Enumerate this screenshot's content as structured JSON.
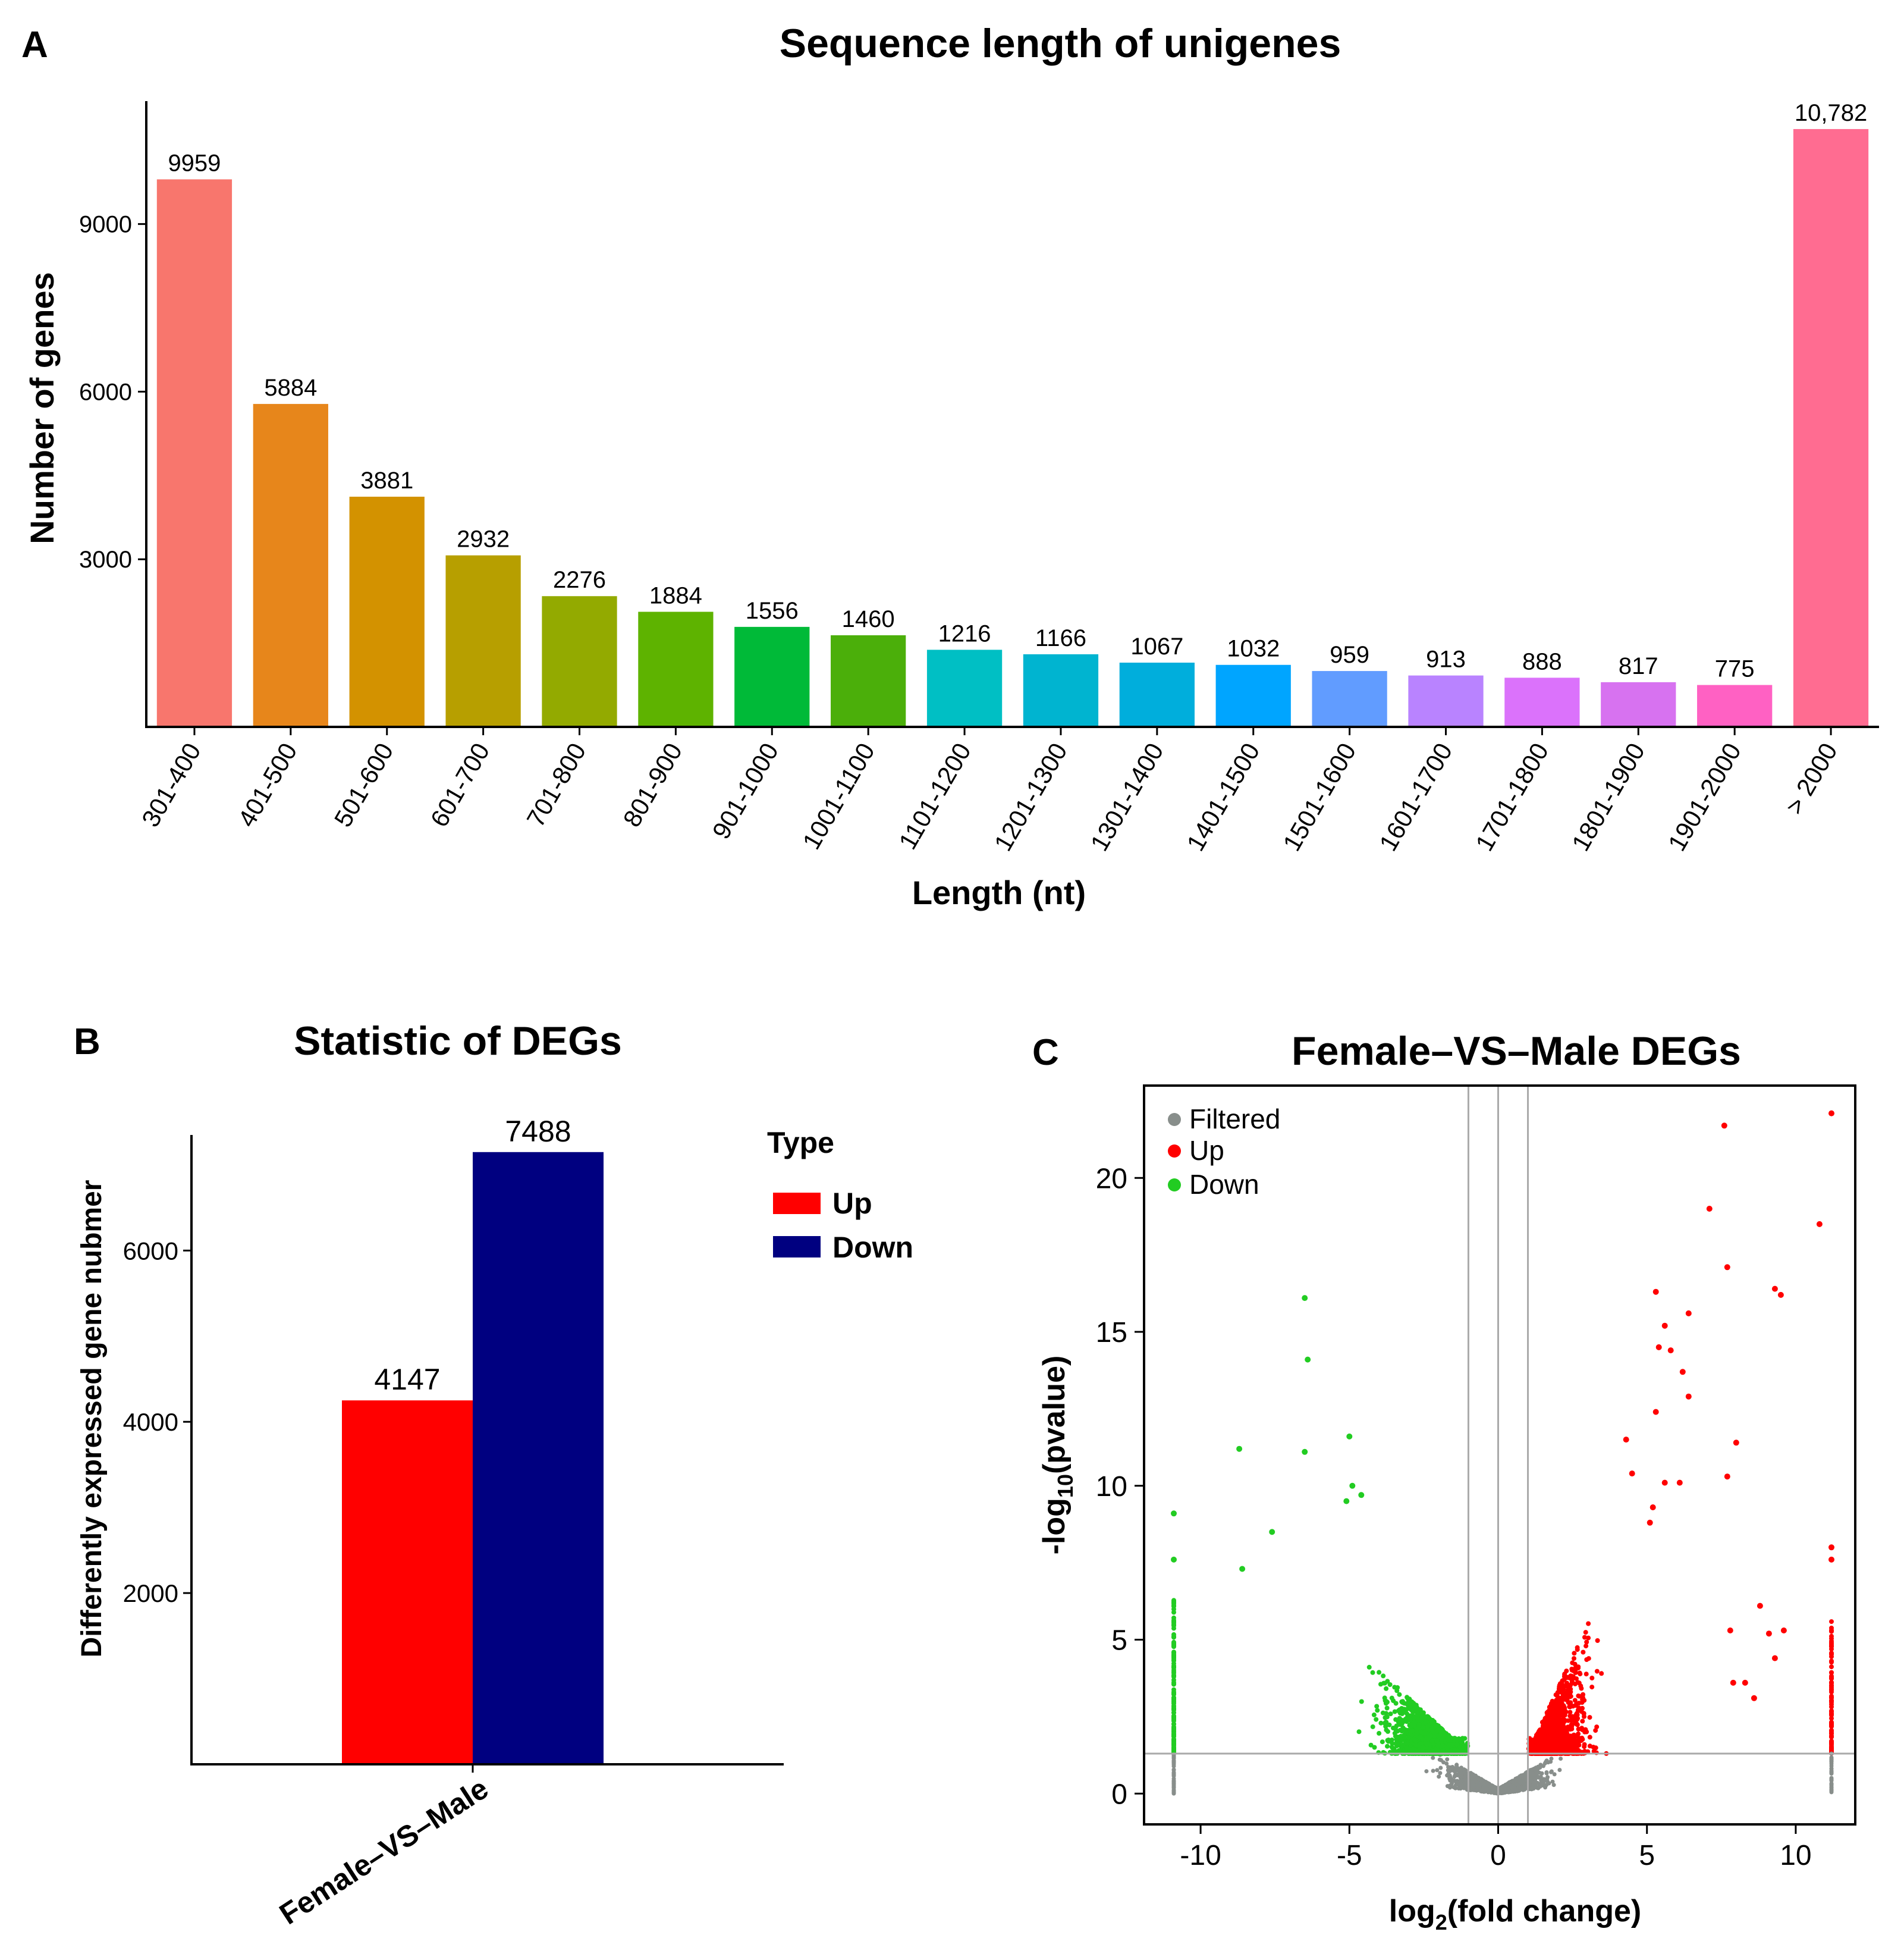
{
  "panels": {
    "a": {
      "letter": "A",
      "chart_data": {
        "type": "bar",
        "title": "Sequence length of unigenes",
        "xlabel": "Length (nt)",
        "ylabel": "Number of genes",
        "categories": [
          "301-400",
          "401-500",
          "501-600",
          "601-700",
          "701-800",
          "801-900",
          "901-1000",
          "1001-1100",
          "1101-1200",
          "1201-1300",
          "1301-1400",
          "1401-1500",
          "1501-1600",
          "1601-1700",
          "1701-1800",
          "1801-1900",
          "1901-2000",
          "> 2000"
        ],
        "values": [
          9959,
          5884,
          3881,
          2932,
          2276,
          1884,
          1556,
          1460,
          1216,
          1166,
          1067,
          1032,
          959,
          913,
          888,
          817,
          775,
          10782
        ],
        "value_labels": [
          "9959",
          "5884",
          "3881",
          "2932",
          "2276",
          "1884",
          "1556",
          "1460",
          "1216",
          "1166",
          "1067",
          "1032",
          "959",
          "913",
          "888",
          "817",
          "775",
          "10,782"
        ],
        "bar_heights_read": [
          9800,
          5780,
          4120,
          3070,
          2340,
          2060,
          1790,
          1640,
          1380,
          1300,
          1150,
          1110,
          1000,
          920,
          880,
          800,
          750,
          10700
        ],
        "colors": [
          "#F8766D",
          "#E7861B",
          "#D39200",
          "#B79F00",
          "#93AA00",
          "#5EB300",
          "#00BA38",
          "#4BAF0A",
          "#00BFC4",
          "#00B4D0",
          "#00AEDC",
          "#00A5FF",
          "#619CFF",
          "#B983FF",
          "#DB72FB",
          "#D772F0",
          "#FF61C3",
          "#FF6C91"
        ],
        "yticks": [
          3000,
          6000,
          9000
        ],
        "yticklabels": [
          "3000",
          "6000",
          "9000"
        ],
        "ylim": [
          0,
          11200
        ]
      }
    },
    "b": {
      "letter": "B",
      "chart_data": {
        "type": "bar",
        "title": "Statistic of DEGs",
        "ylabel": "Differently expressed gene nubmer",
        "categories": [
          "Female–VS–Male"
        ],
        "series": [
          {
            "name": "Up",
            "values": [
              4147
            ],
            "bar_height_read": [
              4250
            ],
            "color": "#FF0000"
          },
          {
            "name": "Down",
            "values": [
              7488
            ],
            "bar_height_read": [
              7150
            ],
            "color": "#000080"
          }
        ],
        "value_labels": [
          "4147",
          "7488"
        ],
        "legend_title": "Type",
        "legend_position": "right",
        "yticks": [
          2000,
          4000,
          6000
        ],
        "yticklabels": [
          "2000",
          "4000",
          "6000"
        ],
        "ylim": [
          0,
          7350
        ]
      }
    },
    "c": {
      "letter": "C",
      "chart_data": {
        "type": "scatter",
        "title": "Female–VS–Male DEGs",
        "xlabel_base": "log",
        "xlabel_sub": "2",
        "xlabel_rest": "(fold change)",
        "ylabel_base": "-log",
        "ylabel_sub": "10",
        "ylabel_rest": "(pvalue)",
        "xticks": [
          -10,
          -5,
          0,
          5,
          10
        ],
        "xticklabels": [
          "-10",
          "-5",
          "0",
          "5",
          "10"
        ],
        "yticks": [
          0,
          5,
          10,
          15,
          20
        ],
        "yticklabels": [
          "0",
          "5",
          "10",
          "15",
          "20"
        ],
        "xlim": [
          -11.9,
          12.0
        ],
        "ylim": [
          -1.0,
          23.0
        ],
        "vlines": [
          -1,
          0,
          1
        ],
        "hline": 1.3,
        "legend": [
          {
            "name": "Filtered",
            "color": "#888E8B"
          },
          {
            "name": "Up",
            "color": "#FF0000"
          },
          {
            "name": "Down",
            "color": "#22CC22"
          }
        ],
        "legend_position": "top-left",
        "up_outliers": [
          [
            7.6,
            21.7
          ],
          [
            11.2,
            22.1
          ],
          [
            7.1,
            19.0
          ],
          [
            10.8,
            18.5
          ],
          [
            7.7,
            17.1
          ],
          [
            9.3,
            16.4
          ],
          [
            9.5,
            16.2
          ],
          [
            6.4,
            15.6
          ],
          [
            5.3,
            16.3
          ],
          [
            5.6,
            15.2
          ],
          [
            5.8,
            14.4
          ],
          [
            5.4,
            14.5
          ],
          [
            6.2,
            13.7
          ],
          [
            6.4,
            12.9
          ],
          [
            8.0,
            11.4
          ],
          [
            5.3,
            12.4
          ],
          [
            4.3,
            11.5
          ],
          [
            7.7,
            10.3
          ],
          [
            4.5,
            10.4
          ],
          [
            5.6,
            10.1
          ],
          [
            6.1,
            10.1
          ],
          [
            5.2,
            9.3
          ],
          [
            5.1,
            8.8
          ],
          [
            8.8,
            6.1
          ],
          [
            9.6,
            5.3
          ],
          [
            9.1,
            5.2
          ],
          [
            7.8,
            5.3
          ],
          [
            9.3,
            4.4
          ],
          [
            7.9,
            3.6
          ],
          [
            8.3,
            3.6
          ],
          [
            8.6,
            3.1
          ],
          [
            11.2,
            8.0
          ],
          [
            11.2,
            7.6
          ]
        ],
        "down_outliers": [
          [
            -6.5,
            16.1
          ],
          [
            -6.4,
            14.1
          ],
          [
            -5.0,
            11.6
          ],
          [
            -6.5,
            11.1
          ],
          [
            -8.7,
            11.2
          ],
          [
            -4.9,
            10.0
          ],
          [
            -4.6,
            9.7
          ],
          [
            -5.1,
            9.5
          ],
          [
            -7.6,
            8.5
          ],
          [
            -10.9,
            9.1
          ],
          [
            -10.9,
            7.6
          ],
          [
            -8.6,
            7.3
          ]
        ],
        "counts": {
          "filtered": 1500,
          "up": 1400,
          "down": 1600,
          "side_down": 150,
          "side_up": 110,
          "side_filtered": 40
        }
      }
    }
  }
}
